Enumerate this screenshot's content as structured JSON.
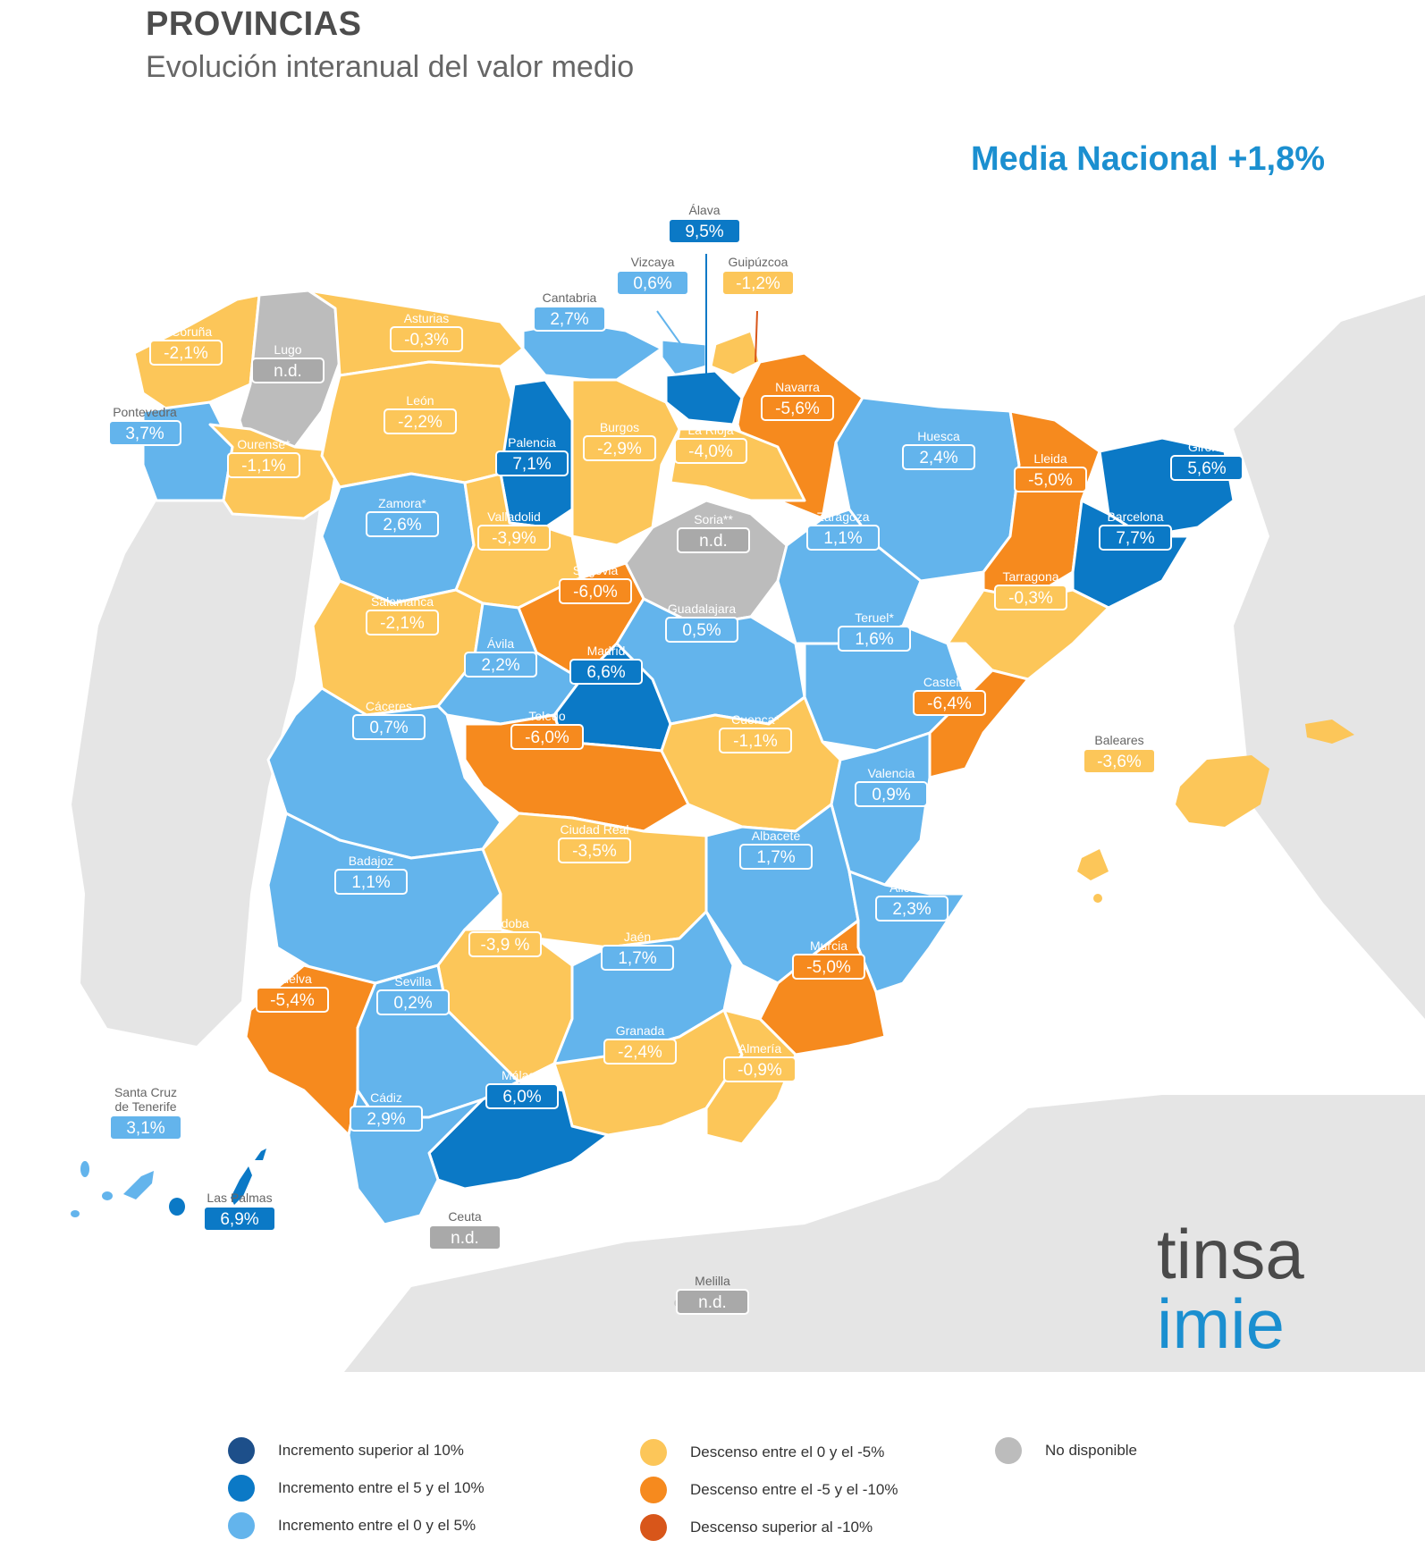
{
  "header": {
    "title": "PROVINCIAS",
    "subtitle": "Evolución interanual del valor medio",
    "national_average": "Media Nacional +1,8%"
  },
  "colors": {
    "inc_over_10": "#1d4f8a",
    "inc_5_10": "#0b79c6",
    "inc_0_5": "#63b4ec",
    "dec_0_5": "#fcc659",
    "dec_5_10": "#f68a1e",
    "dec_over_10": "#d8561a",
    "not_available": "#bcbcbc",
    "land_background": "#e5e5e5",
    "title_blue": "#1b8fd0"
  },
  "provinces": [
    {
      "name": "A Coruña",
      "value": "-2,1%",
      "category": "dec_0_5"
    },
    {
      "name": "Lugo",
      "value": "n.d.",
      "category": "not_available"
    },
    {
      "name": "Asturias",
      "value": "-0,3%",
      "category": "dec_0_5"
    },
    {
      "name": "Cantabria",
      "value": "2,7%",
      "category": "inc_0_5"
    },
    {
      "name": "Vizcaya",
      "value": "0,6%",
      "category": "inc_0_5"
    },
    {
      "name": "Álava",
      "value": "9,5%",
      "category": "inc_5_10"
    },
    {
      "name": "Guipúzcoa",
      "value": "-1,2%",
      "category": "dec_0_5"
    },
    {
      "name": "Navarra",
      "value": "-5,6%",
      "category": "dec_5_10"
    },
    {
      "name": "Pontevedra",
      "value": "3,7%",
      "category": "inc_0_5"
    },
    {
      "name": "Ourense*",
      "value": "-1,1%",
      "category": "dec_0_5"
    },
    {
      "name": "León",
      "value": "-2,2%",
      "category": "dec_0_5"
    },
    {
      "name": "Palencia",
      "value": "7,1%",
      "category": "inc_5_10"
    },
    {
      "name": "Burgos",
      "value": "-2,9%",
      "category": "dec_0_5"
    },
    {
      "name": "La Rioja",
      "value": "-4,0%",
      "category": "dec_0_5"
    },
    {
      "name": "Huesca",
      "value": "2,4%",
      "category": "inc_0_5"
    },
    {
      "name": "Lleida",
      "value": "-5,0%",
      "category": "dec_5_10"
    },
    {
      "name": "Girona",
      "value": "5,6%",
      "category": "inc_5_10"
    },
    {
      "name": "Barcelona",
      "value": "7,7%",
      "category": "inc_5_10"
    },
    {
      "name": "Zamora*",
      "value": "2,6%",
      "category": "inc_0_5"
    },
    {
      "name": "Valladolid",
      "value": "-3,9%",
      "category": "dec_0_5"
    },
    {
      "name": "Soria**",
      "value": "n.d.",
      "category": "not_available"
    },
    {
      "name": "Zaragoza",
      "value": "1,1%",
      "category": "inc_0_5"
    },
    {
      "name": "Tarragona",
      "value": "-0,3%",
      "category": "dec_0_5"
    },
    {
      "name": "Segovia",
      "value": "-6,0%",
      "category": "dec_5_10"
    },
    {
      "name": "Salamanca",
      "value": "-2,1%",
      "category": "dec_0_5"
    },
    {
      "name": "Guadalajara",
      "value": "0,5%",
      "category": "inc_0_5"
    },
    {
      "name": "Ávila",
      "value": "2,2%",
      "category": "inc_0_5"
    },
    {
      "name": "Madrid",
      "value": "6,6%",
      "category": "inc_5_10"
    },
    {
      "name": "Teruel*",
      "value": "1,6%",
      "category": "inc_0_5"
    },
    {
      "name": "Castellón",
      "value": "-6,4%",
      "category": "dec_5_10"
    },
    {
      "name": "Cáceres",
      "value": "0,7%",
      "category": "inc_0_5"
    },
    {
      "name": "Toledo",
      "value": "-6,0%",
      "category": "dec_5_10"
    },
    {
      "name": "Cuenca*",
      "value": "-1,1%",
      "category": "dec_0_5"
    },
    {
      "name": "Baleares",
      "value": "-3,6%",
      "category": "dec_0_5"
    },
    {
      "name": "Valencia",
      "value": "0,9%",
      "category": "inc_0_5"
    },
    {
      "name": "Ciudad Real",
      "value": "-3,5%",
      "category": "dec_0_5"
    },
    {
      "name": "Albacete",
      "value": "1,7%",
      "category": "inc_0_5"
    },
    {
      "name": "Badajoz",
      "value": "1,1%",
      "category": "inc_0_5"
    },
    {
      "name": "Alicante",
      "value": "2,3%",
      "category": "inc_0_5"
    },
    {
      "name": "Córdoba",
      "value": "-3,9 %",
      "category": "dec_0_5"
    },
    {
      "name": "Jaén",
      "value": "1,7%",
      "category": "inc_0_5"
    },
    {
      "name": "Murcia",
      "value": "-5,0%",
      "category": "dec_5_10"
    },
    {
      "name": "Huelva",
      "value": "-5,4%",
      "category": "dec_5_10"
    },
    {
      "name": "Sevilla",
      "value": "0,2%",
      "category": "inc_0_5"
    },
    {
      "name": "Granada",
      "value": "-2,4%",
      "category": "dec_0_5"
    },
    {
      "name": "Almería",
      "value": "-0,9%",
      "category": "dec_0_5"
    },
    {
      "name": "Santa Cruz de Tenerife",
      "value": "3,1%",
      "category": "inc_0_5"
    },
    {
      "name": "Málaga",
      "value": "6,0%",
      "category": "inc_5_10"
    },
    {
      "name": "Cádiz",
      "value": "2,9%",
      "category": "inc_0_5"
    },
    {
      "name": "Las Palmas",
      "value": "6,9%",
      "category": "inc_5_10"
    },
    {
      "name": "Ceuta",
      "value": "n.d.",
      "category": "not_available"
    },
    {
      "name": "Melilla",
      "value": "n.d.",
      "category": "not_available"
    }
  ],
  "legend": [
    {
      "label": "Incremento superior al 10%",
      "category": "inc_over_10"
    },
    {
      "label": "Incremento entre el 5 y el 10%",
      "category": "inc_5_10"
    },
    {
      "label": "Incremento entre el 0 y el 5%",
      "category": "inc_0_5"
    },
    {
      "label": "Descenso entre el 0 y el -5%",
      "category": "dec_0_5"
    },
    {
      "label": "Descenso entre el -5 y el -10%",
      "category": "dec_5_10"
    },
    {
      "label": "Descenso superior al -10%",
      "category": "dec_over_10"
    },
    {
      "label": "No disponible",
      "category": "not_available"
    }
  ],
  "logo": {
    "line1": "tinsa",
    "line2": "imie"
  }
}
